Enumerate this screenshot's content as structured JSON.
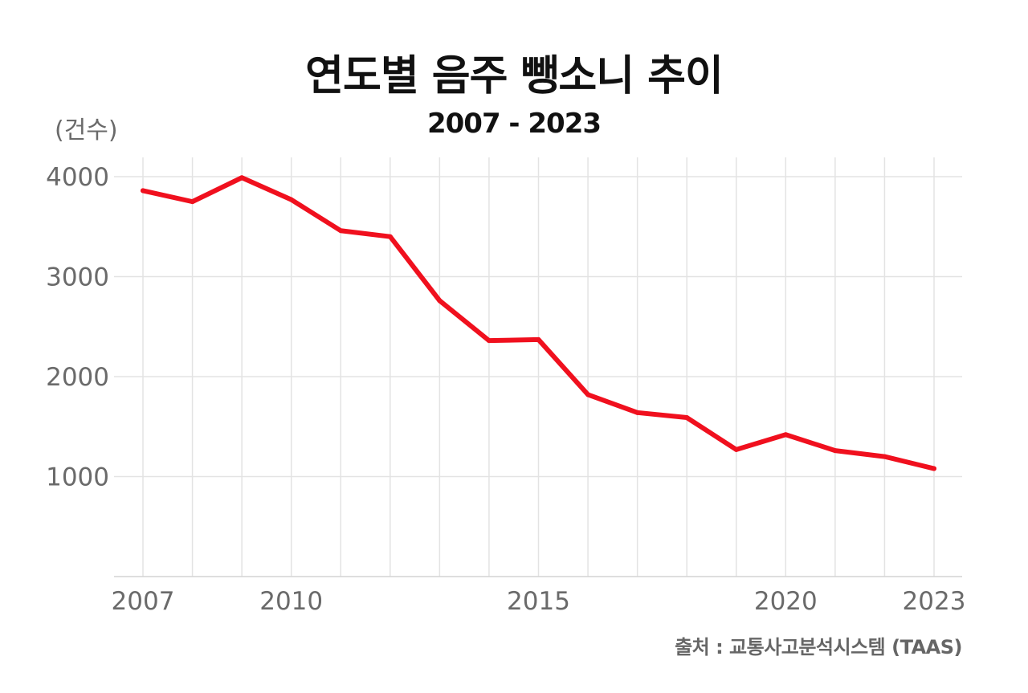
{
  "title": "연도별 음주 뺑소니 추이",
  "subtitle": "2007 - 2023",
  "source": "출처 : 교통사고분석시스템 (TAAS)",
  "chart_data": {
    "type": "line",
    "ylabel": "(건수)",
    "xlabel": "",
    "x": [
      2007,
      2008,
      2009,
      2010,
      2011,
      2012,
      2013,
      2014,
      2015,
      2016,
      2017,
      2018,
      2019,
      2020,
      2021,
      2022,
      2023
    ],
    "series": [
      {
        "values": [
          3860,
          3750,
          3990,
          3770,
          3460,
          3400,
          2760,
          2360,
          2370,
          1820,
          1640,
          1590,
          1270,
          1420,
          1260,
          1200,
          1080
        ],
        "color": "#f0101e"
      }
    ],
    "ylim": [
      0,
      4200
    ],
    "xlim": [
      2007,
      2023
    ],
    "yticks": [
      1000,
      2000,
      3000,
      4000
    ],
    "xticks": [
      2007,
      2010,
      2015,
      2020,
      2023
    ],
    "grid": true,
    "legend": "none"
  }
}
